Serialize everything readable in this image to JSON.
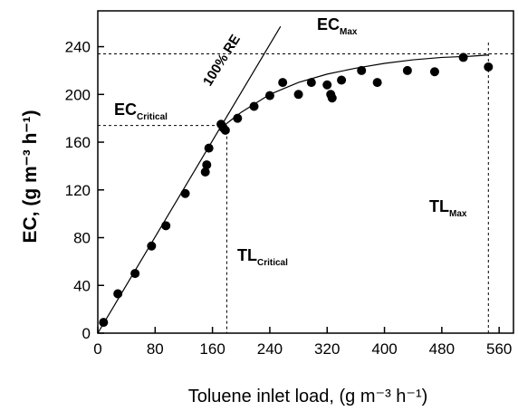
{
  "chart_data": {
    "type": "scatter",
    "xlabel": "Toluene inlet load, (g m⁻³ h⁻¹)",
    "ylabel": "EC, (g m⁻³ h⁻¹)",
    "xlim": [
      0,
      580
    ],
    "ylim": [
      0,
      270
    ],
    "xticks": [
      0,
      80,
      160,
      240,
      320,
      400,
      480,
      560
    ],
    "yticks": [
      0,
      40,
      80,
      120,
      160,
      200,
      240
    ],
    "series": [
      {
        "kind": "points",
        "color": "#000000",
        "x": [
          8,
          28,
          52,
          75,
          95,
          122,
          150,
          152,
          155,
          172,
          175,
          178,
          195,
          218,
          240,
          258,
          280,
          298,
          320,
          325,
          327,
          340,
          368,
          390,
          432,
          470,
          510,
          545
        ],
        "values": [
          9,
          33,
          50,
          73,
          90,
          117,
          135,
          141,
          155,
          175,
          172,
          170,
          180,
          190,
          199,
          210,
          200,
          210,
          208,
          200,
          197,
          212,
          220,
          210,
          220,
          219,
          231,
          223
        ]
      },
      {
        "kind": "line",
        "color": "#000000",
        "x": [
          0,
          255
        ],
        "values": [
          0,
          257
        ]
      },
      {
        "kind": "line",
        "color": "#000000",
        "x": [
          172,
          200,
          240,
          280,
          320,
          360,
          400,
          440,
          480,
          520,
          545
        ],
        "values": [
          172,
          185,
          200,
          210,
          217,
          222,
          226,
          229,
          231,
          232,
          233
        ]
      }
    ],
    "reference_lines": {
      "ec_max": 234,
      "tl_max": 545,
      "ec_critical": 174,
      "tl_critical": 180
    },
    "annotations": [
      {
        "text": "EC",
        "sub": "Max"
      },
      {
        "text": "EC",
        "sub": "Critical"
      },
      {
        "text": "TL",
        "sub": "Critical"
      },
      {
        "text": "TL",
        "sub": "Max"
      },
      {
        "text": "100% RE"
      }
    ]
  }
}
